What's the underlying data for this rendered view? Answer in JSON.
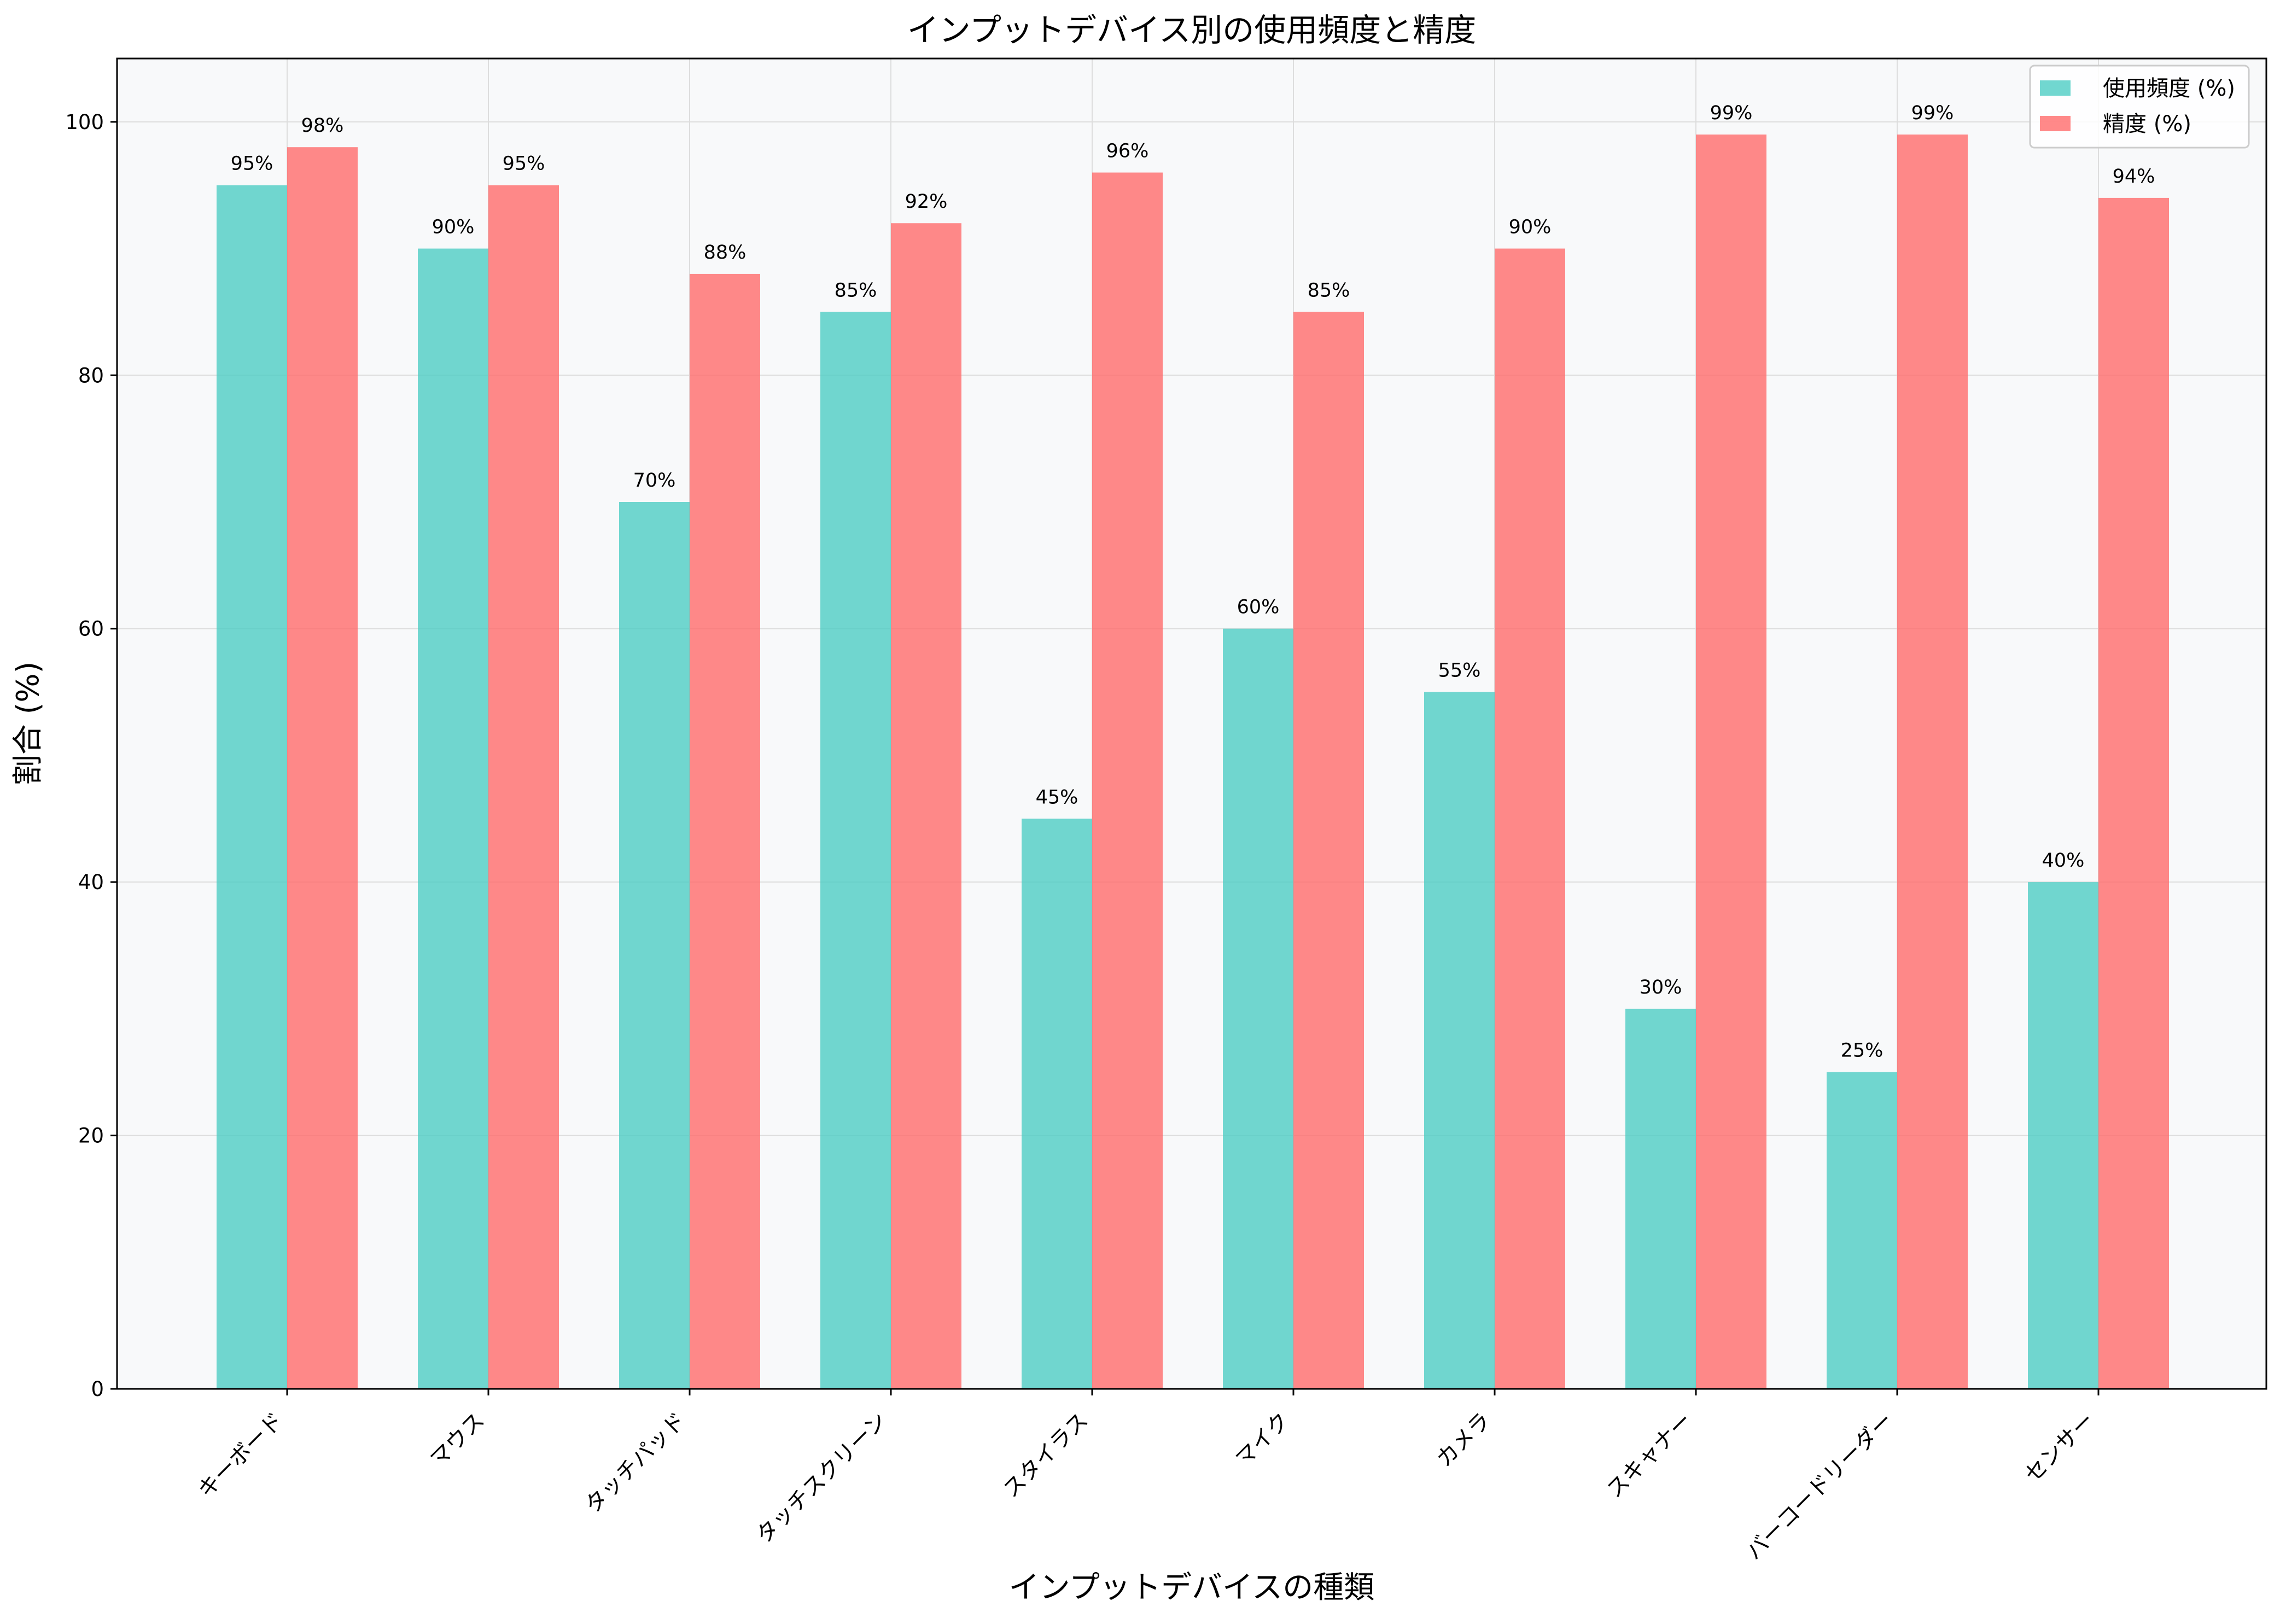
{
  "chart_data": {
    "type": "bar",
    "title": "インプットデバイス別の使用頻度と精度",
    "xlabel": "インプットデバイスの種類",
    "ylabel": "割合 (%)",
    "ylim": [
      0,
      105
    ],
    "yticks": [
      0,
      20,
      40,
      60,
      80,
      100
    ],
    "grid": true,
    "legend_position": "top-right",
    "categories": [
      "キーボード",
      "マウス",
      "タッチパッド",
      "タッチスクリーン",
      "スタイラス",
      "マイク",
      "カメラ",
      "スキャナー",
      "バーコードリーダー",
      "センサー"
    ],
    "series": [
      {
        "name": "使用頻度 (%)",
        "color": "#4ECDC4",
        "values": [
          95,
          90,
          70,
          85,
          45,
          60,
          55,
          30,
          25,
          40
        ]
      },
      {
        "name": "精度 (%)",
        "color": "#FF6B6B",
        "values": [
          98,
          95,
          88,
          92,
          96,
          85,
          90,
          99,
          99,
          94
        ]
      }
    ],
    "value_suffix": "%"
  }
}
